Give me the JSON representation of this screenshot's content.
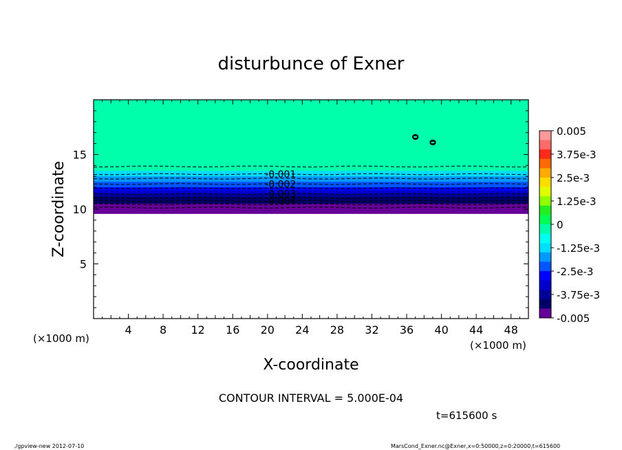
{
  "chart_data": {
    "type": "contour",
    "title": "disturbunce of Exner",
    "xlabel": "X-coordinate",
    "ylabel": "Z-coordinate",
    "x_unit": "(×1000 m)",
    "y_unit": "(×1000 m)",
    "xlim": [
      0,
      50
    ],
    "ylim": [
      0,
      20
    ],
    "x_ticks": [
      4,
      8,
      12,
      16,
      20,
      24,
      28,
      32,
      36,
      40,
      44,
      48
    ],
    "y_ticks": [
      5,
      10,
      15
    ],
    "colorbar": {
      "min": -0.005,
      "max": 0.005,
      "labels": [
        "0.005",
        "3.75e-3",
        "2.5e-3",
        "1.25e-3",
        "0",
        "-1.25e-3",
        "-2.5e-3",
        "-3.75e-3",
        "-0.005"
      ],
      "colors": [
        "#ff9a9a",
        "#ff6a6a",
        "#ff2a1a",
        "#ff6a00",
        "#ffaa00",
        "#ffdd00",
        "#ddff00",
        "#90ff00",
        "#22ee22",
        "#00ff55",
        "#00ffaa",
        "#00ffee",
        "#00ddff",
        "#0099ff",
        "#0055ff",
        "#0000ff",
        "#0000cc",
        "#000099",
        "#000066",
        "#660099"
      ]
    },
    "fields": [
      {
        "z_from": 14,
        "z_to": 20,
        "value": 0
      },
      {
        "z_from": 13.5,
        "z_to": 14,
        "value": -0.0005
      },
      {
        "z_from": 13,
        "z_to": 13.5,
        "value": -0.001
      },
      {
        "z_from": 12.5,
        "z_to": 13,
        "value": -0.0015
      },
      {
        "z_from": 12,
        "z_to": 12.5,
        "value": -0.002
      },
      {
        "z_from": 11.7,
        "z_to": 12,
        "value": -0.0025
      },
      {
        "z_from": 11.4,
        "z_to": 11.7,
        "value": -0.003
      },
      {
        "z_from": 11.1,
        "z_to": 11.4,
        "value": -0.0035
      },
      {
        "z_from": 10.8,
        "z_to": 11.1,
        "value": -0.004
      },
      {
        "z_from": 10.5,
        "z_to": 10.8,
        "value": -0.0043
      },
      {
        "z_from": 10.2,
        "z_to": 10.5,
        "value": -0.0046
      },
      {
        "z_from": 9.9,
        "z_to": 10.2,
        "value": -0.0049
      },
      {
        "z_from": 9.6,
        "z_to": 9.9,
        "value": -0.005
      }
    ],
    "contours": [
      {
        "z": 13.9,
        "label": ""
      },
      {
        "z": 13.2,
        "label": "-0.001"
      },
      {
        "z": 12.8,
        "label": ""
      },
      {
        "z": 12.3,
        "label": "-0.002"
      },
      {
        "z": 11.9,
        "label": ""
      },
      {
        "z": 11.4,
        "label": "-0.003"
      },
      {
        "z": 11.05,
        "label": ""
      },
      {
        "z": 10.75,
        "label": "-0.004"
      },
      {
        "z": 10.45,
        "label": ""
      },
      {
        "z": 10.15,
        "label": ""
      }
    ],
    "closed_contours": [
      {
        "x": 37.0,
        "z": 16.6,
        "label": "0"
      },
      {
        "x": 39.0,
        "z": 16.1,
        "label": "0"
      }
    ]
  },
  "annotations": {
    "contour_interval": "CONTOUR INTERVAL = 5.000E-04",
    "time": "t=615600 s",
    "footer_left": "./gpview-new   2012-07-10",
    "footer_right": "MarsCond_Exner.nc@Exner,x=0:50000,z=0:20000,t=615600"
  }
}
